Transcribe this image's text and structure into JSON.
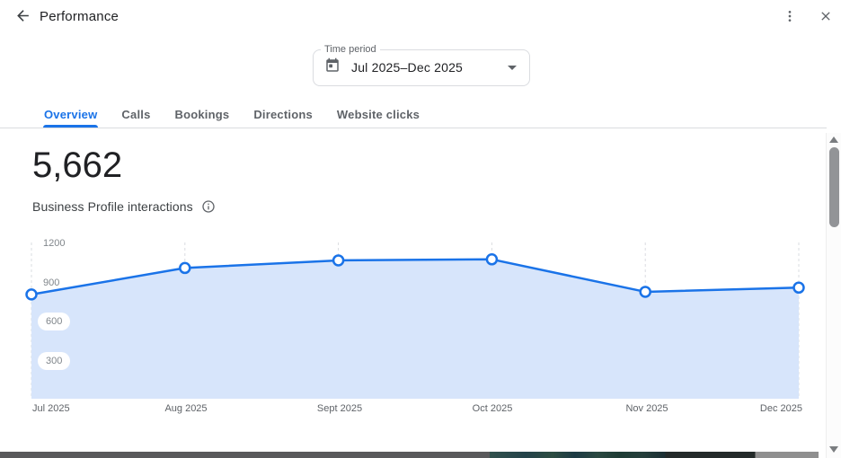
{
  "header": {
    "title": "Performance"
  },
  "time_period": {
    "label": "Time period",
    "value": "Jul 2025–Dec 2025"
  },
  "tabs": [
    {
      "label": "Overview",
      "active": true
    },
    {
      "label": "Calls",
      "active": false
    },
    {
      "label": "Bookings",
      "active": false
    },
    {
      "label": "Directions",
      "active": false
    },
    {
      "label": "Website clicks",
      "active": false
    }
  ],
  "metric": {
    "value": "5,662",
    "label": "Business Profile interactions"
  },
  "icons": {
    "back": "arrow-left",
    "menu": "kebab-vertical-dots",
    "close": "x",
    "calendar": "calendar-event",
    "dropdown": "caret-down",
    "info": "info-circle-outline",
    "scroll_up": "triangle-up",
    "scroll_down": "triangle-down"
  },
  "colors": {
    "accent_blue": "#1a73e8",
    "chart_line": "#1a73e8",
    "chart_fill": "#d7e5fb",
    "gridline": "#dadce0",
    "text_primary": "#202124",
    "text_secondary": "#5f6368"
  },
  "chart_data": {
    "type": "area",
    "title": "Business Profile interactions",
    "categories": [
      "Jul 2025",
      "Aug 2025",
      "Sept 2025",
      "Oct 2025",
      "Nov 2025",
      "Dec 2025"
    ],
    "values": [
      810,
      1012,
      1070,
      1078,
      830,
      862
    ],
    "total": 5662,
    "xlabel": "",
    "ylabel": "",
    "ylim": [
      0,
      1200
    ],
    "y_ticks": [
      "1200",
      "900",
      "600",
      "300"
    ],
    "grid": "vertical-dashed",
    "legend": "none",
    "point_style": "open-circle"
  }
}
